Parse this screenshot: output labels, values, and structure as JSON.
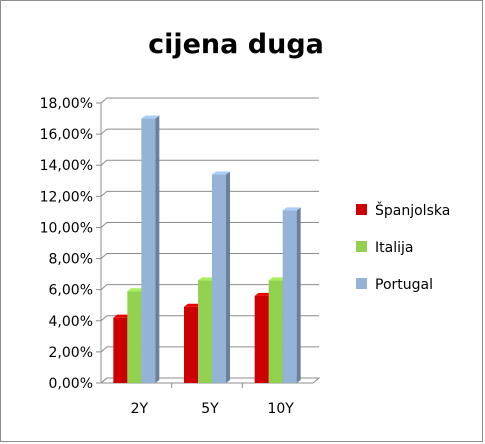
{
  "chart_data": {
    "type": "bar",
    "title": "cijena duga",
    "categories": [
      "2Y",
      "5Y",
      "10Y"
    ],
    "series": [
      {
        "name": "Španjolska",
        "color": "#cc0000",
        "values": [
          4.2,
          4.9,
          5.6
        ]
      },
      {
        "name": "Italija",
        "color": "#92d050",
        "values": [
          5.9,
          6.6,
          6.6
        ]
      },
      {
        "name": "Portugal",
        "color": "#95b3d7",
        "values": [
          17.0,
          13.4,
          11.1
        ]
      }
    ],
    "ylim": [
      0,
      18
    ],
    "y_tick_labels": [
      "0,00%",
      "2,00%",
      "4,00%",
      "6,00%",
      "8,00%",
      "10,00%",
      "12,00%",
      "14,00%",
      "16,00%",
      "18,00%"
    ],
    "grid": true,
    "legend_position": "right",
    "style": "3d-clustered-column"
  }
}
